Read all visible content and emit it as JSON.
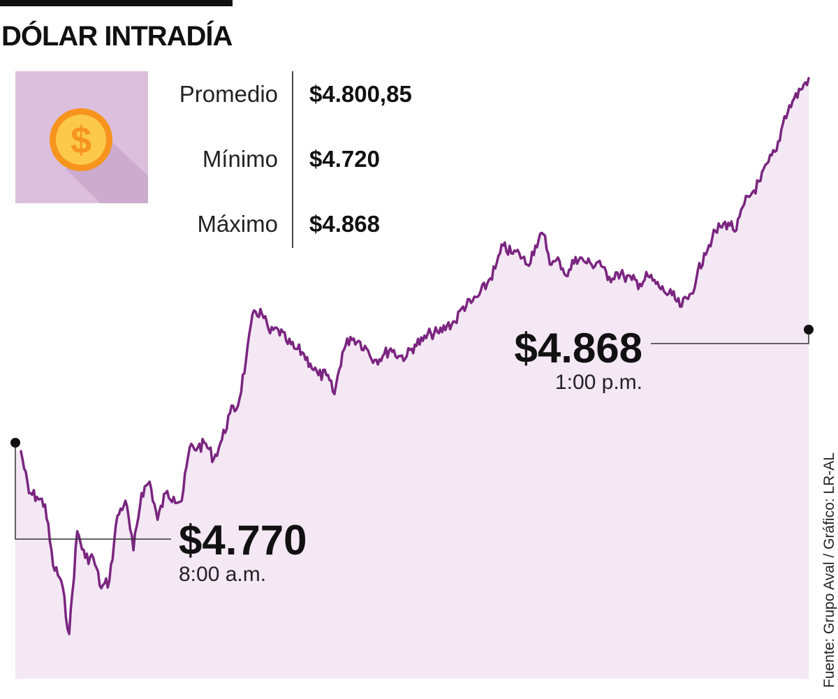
{
  "header": {
    "title": "DÓLAR INTRADÍA"
  },
  "icon": {
    "name": "dollar-coin-icon",
    "glyph": "$"
  },
  "stats": [
    {
      "label": "Promedio",
      "value": "$4.800,85"
    },
    {
      "label": "Mínimo",
      "value": "$4.720"
    },
    {
      "label": "Máximo",
      "value": "$4.868"
    }
  ],
  "source": "Fuente: Grupo Aval / Gráfico: LR-AL",
  "colors": {
    "line": "#7a2580",
    "area": "#f3e8f4",
    "icon_bg": "#dcbfdd",
    "coin": "#f7941d",
    "coin_inner": "#fdc94b"
  },
  "chart_data": {
    "type": "line",
    "title": "DÓLAR INTRADÍA",
    "xlabel": "",
    "ylabel": "",
    "x_range": [
      "8:00 a.m.",
      "1:00 p.m."
    ],
    "ylim": [
      4715,
      4868
    ],
    "series": [
      {
        "name": "Dólar intradía",
        "values": [
          4770,
          4759,
          4758,
          4756,
          4740,
          4736,
          4722,
          4749,
          4742,
          4742,
          4734,
          4736,
          4753,
          4757,
          4744,
          4759,
          4762,
          4752,
          4759,
          4758,
          4757,
          4771,
          4771,
          4772,
          4768,
          4773,
          4780,
          4782,
          4794,
          4807,
          4806,
          4801,
          4802,
          4799,
          4797,
          4796,
          4793,
          4790,
          4790,
          4785,
          4796,
          4800,
          4799,
          4797,
          4794,
          4795,
          4797,
          4795,
          4795,
          4798,
          4799,
          4801,
          4801,
          4803,
          4804,
          4808,
          4809,
          4811,
          4814,
          4818,
          4824,
          4822,
          4822,
          4819,
          4824,
          4827,
          4819,
          4820,
          4816,
          4821,
          4820,
          4819,
          4820,
          4815,
          4817,
          4816,
          4815,
          4814,
          4816,
          4814,
          4812,
          4811,
          4808,
          4810,
          4815,
          4822,
          4826,
          4829,
          4830,
          4828,
          4835,
          4838,
          4841,
          4846,
          4849,
          4858,
          4862,
          4865,
          4868
        ]
      }
    ],
    "annotations": [
      {
        "value": "$4.770",
        "time": "8:00 a.m."
      },
      {
        "value": "$4.868",
        "time": "1:00 p.m."
      }
    ]
  }
}
